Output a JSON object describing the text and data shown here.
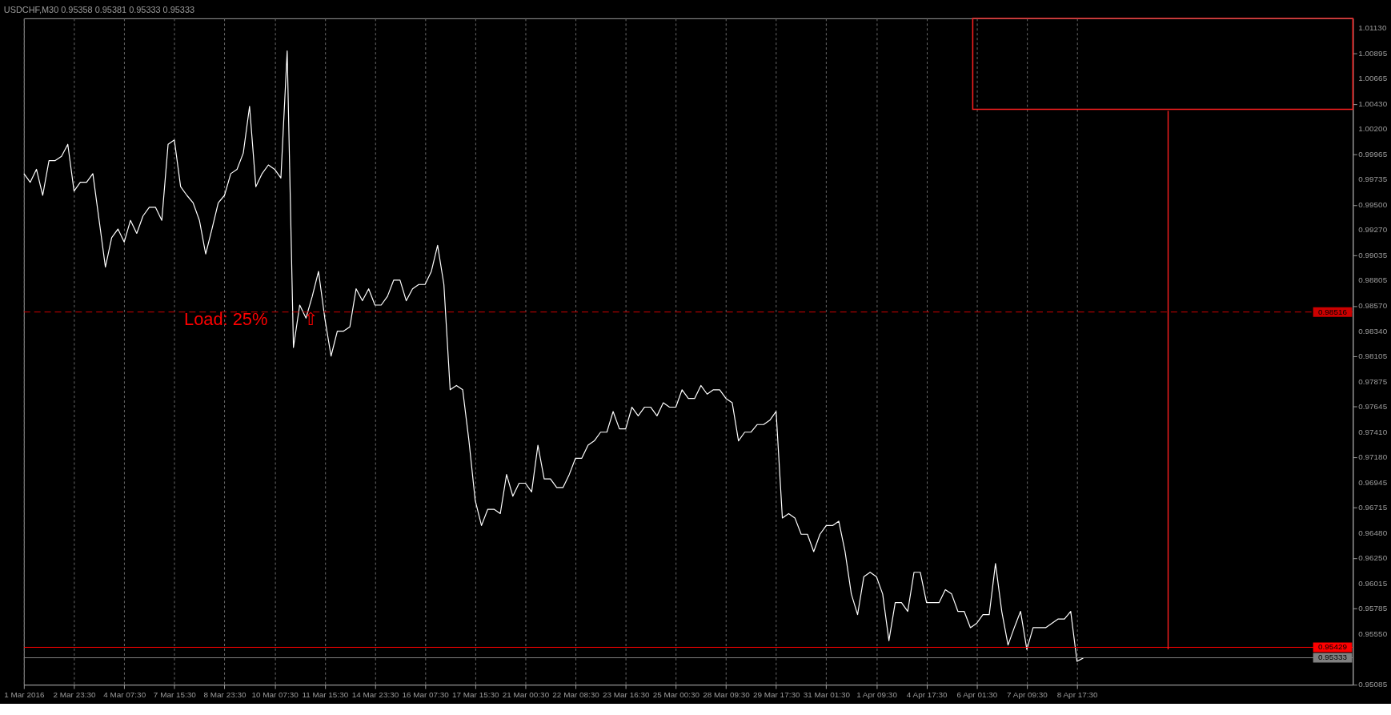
{
  "chart_data": {
    "type": "line",
    "title": "USDCHF,M30  0.95358 0.95381 0.95333 0.95333",
    "categories": [
      "1 Mar 2016",
      null,
      null,
      null,
      null,
      null,
      null,
      null,
      "2 Mar 23:30",
      null,
      null,
      null,
      null,
      null,
      null,
      null,
      "4 Mar 07:30",
      null,
      null,
      null,
      null,
      null,
      null,
      null,
      "7 Mar 15:30",
      null,
      null,
      null,
      null,
      null,
      null,
      null,
      "8 Mar 23:30",
      null,
      null,
      null,
      null,
      null,
      null,
      null,
      "10 Mar 07:30",
      null,
      null,
      null,
      null,
      null,
      null,
      null,
      "11 Mar 15:30",
      null,
      null,
      null,
      null,
      null,
      null,
      null,
      "14 Mar 23:30",
      null,
      null,
      null,
      null,
      null,
      null,
      null,
      "16 Mar 07:30",
      null,
      null,
      null,
      null,
      null,
      null,
      null,
      "17 Mar 15:30",
      null,
      null,
      null,
      null,
      null,
      null,
      null,
      "21 Mar 00:30",
      null,
      null,
      null,
      null,
      null,
      null,
      null,
      "22 Mar 08:30",
      null,
      null,
      null,
      null,
      null,
      null,
      null,
      "23 Mar 16:30",
      null,
      null,
      null,
      null,
      null,
      null,
      null,
      "25 Mar 00:30",
      null,
      null,
      null,
      null,
      null,
      null,
      null,
      "28 Mar 09:30",
      null,
      null,
      null,
      null,
      null,
      null,
      null,
      "29 Mar 17:30",
      null,
      null,
      null,
      null,
      null,
      null,
      null,
      "31 Mar 01:30",
      null,
      null,
      null,
      null,
      null,
      null,
      null,
      "1 Apr 09:30",
      null,
      null,
      null,
      null,
      null,
      null,
      null,
      "4 Apr 17:30",
      null,
      null,
      null,
      null,
      null,
      null,
      null,
      "6 Apr 01:30",
      null,
      null,
      null,
      null,
      null,
      null,
      null,
      "7 Apr 09:30",
      null,
      null,
      null,
      null,
      null,
      null,
      null,
      "8 Apr 17:30",
      null,
      null,
      null,
      null,
      null,
      null,
      null,
      null,
      null,
      null,
      null,
      null,
      null,
      null,
      null,
      null,
      null,
      null,
      null,
      null,
      null,
      null,
      null,
      null,
      null,
      null,
      null,
      null,
      null,
      null,
      null,
      null,
      null,
      null,
      null,
      null,
      null,
      null,
      null,
      null,
      null,
      null,
      null,
      null
    ],
    "series": [
      {
        "color": "#ffffff",
        "values": [
          0.9979,
          0.9971,
          0.9983,
          0.9959,
          0.9991,
          0.9991,
          0.9995,
          1.0006,
          0.9963,
          0.9971,
          0.9971,
          0.9979,
          0.9936,
          0.9893,
          0.992,
          0.9928,
          0.9916,
          0.9936,
          0.9924,
          0.994,
          0.9948,
          0.9948,
          0.9936,
          1.0006,
          1.001,
          0.9967,
          0.9959,
          0.9952,
          0.9936,
          0.9905,
          0.9928,
          0.9952,
          0.9959,
          0.9979,
          0.9983,
          0.9998,
          1.0041,
          0.9967,
          0.9979,
          0.9987,
          0.9983,
          0.9975,
          1.0092,
          0.9819,
          0.9858,
          0.9846,
          0.9866,
          0.9889,
          0.9846,
          0.9811,
          0.9834,
          0.9834,
          0.9838,
          0.9873,
          0.9862,
          0.9873,
          0.9858,
          0.9858,
          0.9866,
          0.9881,
          0.9881,
          0.9862,
          0.9873,
          0.9877,
          0.9877,
          0.9889,
          0.9913,
          0.9877,
          0.978,
          0.9784,
          0.978,
          0.9733,
          0.9678,
          0.9655,
          0.967,
          0.967,
          0.9666,
          0.9702,
          0.9682,
          0.9694,
          0.9694,
          0.9686,
          0.9729,
          0.9698,
          0.9698,
          0.969,
          0.969,
          0.9702,
          0.9717,
          0.9717,
          0.9729,
          0.9733,
          0.9741,
          0.9741,
          0.976,
          0.9744,
          0.9744,
          0.9764,
          0.9756,
          0.9764,
          0.9764,
          0.9756,
          0.9768,
          0.9764,
          0.9764,
          0.978,
          0.9772,
          0.9772,
          0.9784,
          0.9776,
          0.978,
          0.978,
          0.9772,
          0.9768,
          0.9733,
          0.9741,
          0.9741,
          0.9748,
          0.9748,
          0.9752,
          0.976,
          0.9662,
          0.9666,
          0.9662,
          0.9647,
          0.9647,
          0.9631,
          0.9647,
          0.9655,
          0.9655,
          0.9659,
          0.9631,
          0.9592,
          0.9573,
          0.9608,
          0.9612,
          0.9608,
          0.9592,
          0.9549,
          0.9584,
          0.9584,
          0.9576,
          0.9612,
          0.9612,
          0.9584,
          0.9584,
          0.9584,
          0.9596,
          0.9592,
          0.9576,
          0.9576,
          0.9561,
          0.9565,
          0.9573,
          0.9573,
          0.962,
          0.9576,
          0.9545,
          0.9561,
          0.9576,
          0.9541,
          0.9561,
          0.9561,
          0.9561,
          0.9565,
          0.9569,
          0.9569,
          0.9576,
          0.953,
          0.9533,
          null,
          null,
          null,
          null,
          null,
          null,
          null,
          null,
          null,
          null,
          null,
          null,
          null,
          null,
          null,
          null,
          null,
          null,
          null,
          null,
          null,
          null,
          null,
          null,
          null,
          null,
          null,
          null,
          null,
          null,
          null,
          null,
          null,
          null,
          null,
          null,
          null,
          null,
          null,
          null,
          null,
          null,
          null
        ]
      }
    ],
    "ylim": [
      0.95085,
      1.0122
    ],
    "yticks": [
      {
        "value": 1.0113,
        "label": "1.01130"
      },
      1.00895,
      1.00665,
      {
        "value": 1.0043,
        "label": "1.00430"
      },
      {
        "value": 1.002,
        "label": "1.00200"
      },
      0.99965,
      0.99735,
      {
        "value": 0.995,
        "label": "0.99500"
      },
      {
        "value": 0.9927,
        "label": "0.99270"
      },
      0.99035,
      0.98805,
      {
        "value": 0.9857,
        "label": "0.98570"
      },
      {
        "value": 0.9834,
        "label": "0.98340"
      },
      0.98105,
      0.97875,
      0.97645,
      {
        "value": 0.9741,
        "label": "0.97410"
      },
      {
        "value": 0.9718,
        "label": "0.97180"
      },
      0.96945,
      0.96715,
      {
        "value": 0.9648,
        "label": "0.96480"
      },
      {
        "value": 0.9625,
        "label": "0.96250"
      },
      0.96015,
      0.95785,
      {
        "value": 0.9555,
        "label": "0.95550"
      },
      0.95085
    ],
    "grid": "x",
    "marker": "none",
    "line_style": "solid",
    "ref_lines": [
      {
        "axis": "y",
        "value": 0.98516,
        "label": "0.98516",
        "color": "#cc0000",
        "line_style": "dashed"
      },
      {
        "axis": "y",
        "value": 0.95429,
        "label": "0.95429",
        "color": "#ff0000",
        "line_style": "solid"
      },
      {
        "axis": "y",
        "value": 0.95333,
        "label": "0.95333",
        "color": "#808080",
        "line_style": "solid"
      }
    ],
    "annotations": [
      "Load: 25%",
      "⇧"
    ]
  }
}
